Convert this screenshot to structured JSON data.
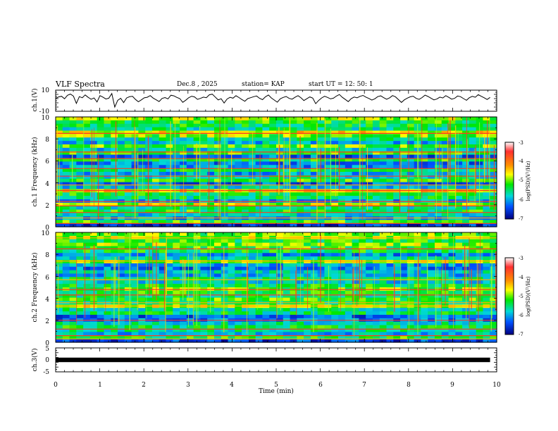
{
  "header": {
    "title": "VLF Spectra",
    "date": "Dec.8 , 2025",
    "station": "station= KAP",
    "start_ut": "start UT = 12: 50: 1"
  },
  "chart_data": [
    {
      "type": "line",
      "panel": "ch1-waveform",
      "ylabel": "ch.1(V)",
      "ylim": [
        -10,
        10
      ],
      "ytick_labels": [
        "10",
        "-10"
      ],
      "xlim": [
        0,
        10
      ],
      "samples": [
        2.1,
        3.6,
        4.2,
        1.8,
        5.1,
        6.3,
        4.4,
        -2.5,
        3.9,
        2.8,
        5.5,
        3.2,
        1.4,
        2.6,
        -1.2,
        4.8,
        3.4,
        1.6,
        2.4,
        6.8,
        -6.0,
        0.4,
        2.3,
        -1.8,
        2.6,
        3.8,
        4.1,
        1.2,
        -1.0,
        0.8,
        2.7,
        3.3,
        4.9,
        2.5,
        0.9,
        -0.8,
        2.1,
        3.0,
        1.7,
        5.2,
        4.6,
        3.1,
        2.0,
        -1.5,
        0.5,
        2.8,
        4.3,
        3.6,
        1.3,
        2.2,
        3.4,
        2.9,
        5.6,
        6.2,
        3.5,
        0.7,
        1.9,
        -2.2,
        1.6,
        3.2,
        2.4,
        4.7,
        3.0,
        1.1,
        -0.5,
        2.0,
        2.9,
        3.8,
        4.5,
        2.3,
        1.0,
        3.7,
        5.4,
        2.6,
        0.6,
        -1.4,
        1.8,
        3.1,
        4.0,
        2.2,
        1.5,
        3.3,
        4.8,
        2.7,
        0.2,
        1.9,
        3.6,
        2.5,
        -2.8,
        0.3,
        2.6,
        4.2,
        3.1,
        1.7,
        2.4,
        4.4,
        5.9,
        3.2,
        1.2,
        -0.9,
        2.0,
        3.5,
        2.8,
        4.1,
        5.0,
        3.4,
        2.1,
        0.6,
        1.8,
        3.9,
        4.6,
        2.9,
        1.4,
        2.7,
        4.9,
        3.6,
        1.0,
        -1.6,
        0.9,
        2.5,
        3.7,
        4.3,
        2.2,
        1.3,
        3.0,
        5.3,
        4.0,
        2.4,
        0.8,
        1.6,
        3.4,
        2.6,
        4.8,
        3.2,
        1.5,
        2.3,
        4.5,
        3.8,
        2.0,
        0.4,
        2.9,
        4.1,
        3.3,
        5.7,
        4.2,
        2.8,
        1.1,
        3.1
      ]
    },
    {
      "type": "heatmap",
      "panel": "ch1-spectrogram",
      "ylabel": "ch.1 Frequency (kHz)",
      "ylim": [
        0,
        10
      ],
      "ytick_labels": [
        "10",
        "8",
        "6",
        "4",
        "2",
        "0"
      ],
      "xlim": [
        0,
        10
      ],
      "colorbar_label": "log(PSD)(V²/Hz)",
      "colorbar_ticks": [
        "-3",
        "-4",
        "-5",
        "-6",
        "-7"
      ],
      "band_levels": [
        -6.6,
        -5.2,
        -6.1,
        -5.8,
        -5.3,
        -5.6,
        -4.8,
        -6.0,
        -5.5,
        -5.4,
        -4.6,
        -5.9,
        -6.3,
        -5.2,
        -5.7,
        -6.0,
        -5.4,
        -6.1,
        -6.2,
        -5.3,
        -6.3,
        -5.2,
        -5.8,
        -5.1,
        -5.9,
        -5.6,
        -5.0,
        -4.7,
        -5.6,
        -5.4,
        -5.3,
        -4.9
      ],
      "line_freqs_khz": [
        0.3,
        0.8,
        1.3,
        1.9,
        2.3,
        3.3,
        3.8,
        4.6,
        5.3,
        6.2,
        6.8,
        8.5
      ]
    },
    {
      "type": "heatmap",
      "panel": "ch2-spectrogram",
      "ylabel": "ch.2 Frequency (kHz)",
      "ylim": [
        0,
        10
      ],
      "ytick_labels": [
        "10",
        "8",
        "6",
        "4",
        "2",
        "0"
      ],
      "xlim": [
        0,
        10
      ],
      "colorbar_label": "log(PSD)(V²/Hz)",
      "colorbar_ticks": [
        "-3",
        "-4",
        "-5",
        "-6",
        "-7"
      ],
      "band_levels": [
        -6.5,
        -5.3,
        -5.9,
        -5.6,
        -5.4,
        -5.7,
        -6.2,
        -6.3,
        -5.5,
        -5.6,
        -4.8,
        -5.4,
        -5.2,
        -5.5,
        -5.3,
        -5.1,
        -5.4,
        -5.8,
        -5.5,
        -6.0,
        -5.8,
        -6.2,
        -6.0,
        -4.9,
        -5.7,
        -6.1,
        -5.4,
        -5.2,
        -5.0,
        -5.3,
        -4.9,
        -5.1
      ],
      "line_freqs_khz": [
        0.3,
        0.6,
        1.2,
        2.0,
        3.3,
        3.6,
        4.3,
        4.8,
        5.7,
        7.4,
        8.5,
        9.5
      ]
    },
    {
      "type": "line",
      "panel": "ch3-waveform",
      "ylabel": "ch.3(V)",
      "ylim": [
        -5,
        5
      ],
      "ytick_labels": [
        "5",
        "0",
        "-5"
      ],
      "xlim": [
        0,
        10
      ],
      "level": 0,
      "band_halfwidth": 0.5
    }
  ],
  "x_axis": {
    "label": "Time (min)",
    "ticks": [
      "0",
      "1",
      "2",
      "3",
      "4",
      "5",
      "6",
      "7",
      "8",
      "9",
      "10"
    ]
  }
}
